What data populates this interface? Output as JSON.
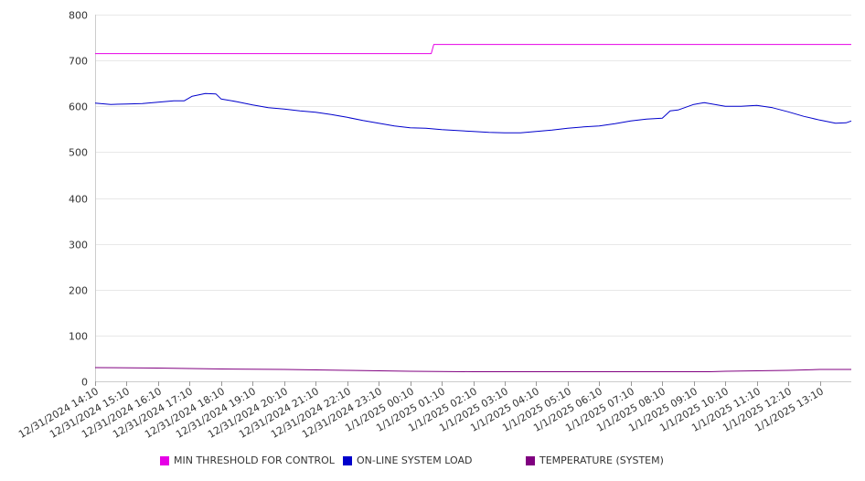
{
  "chart_data": {
    "type": "line",
    "title": "",
    "xlabel": "",
    "ylabel": "",
    "ylim": [
      0,
      800
    ],
    "yticks": [
      0,
      100,
      200,
      300,
      400,
      500,
      600,
      700,
      800
    ],
    "grid": true,
    "legend_position": "bottom",
    "x_start": "12/31/2024 14:10",
    "x_end": "1/1/2025 14:10",
    "x_tick_labels": [
      "12/31/2024 14:10",
      "12/31/2024 15:10",
      "12/31/2024 16:10",
      "12/31/2024 17:10",
      "12/31/2024 18:10",
      "12/31/2024 19:10",
      "12/31/2024 20:10",
      "12/31/2024 21:10",
      "12/31/2024 22:10",
      "12/31/2024 23:10",
      "1/1/2025 00:10",
      "1/1/2025 01:10",
      "1/1/2025 02:10",
      "1/1/2025 03:10",
      "1/1/2025 04:10",
      "1/1/2025 05:10",
      "1/1/2025 06:10",
      "1/1/2025 07:10",
      "1/1/2025 08:10",
      "1/1/2025 09:10",
      "1/1/2025 10:10",
      "1/1/2025 11:10",
      "1/1/2025 12:10",
      "1/1/2025 13:10"
    ],
    "series": [
      {
        "name": "MIN THRESHOLD FOR CONTROL",
        "color": "#e600e6",
        "points": [
          [
            "12/31/2024 14:10",
            715
          ],
          [
            "1/1/2025 00:50",
            715
          ],
          [
            "1/1/2025 00:55",
            735
          ],
          [
            "1/1/2025 14:10",
            735
          ]
        ]
      },
      {
        "name": "ON-LINE SYSTEM LOAD",
        "color": "#0000cc",
        "points": [
          [
            "12/31/2024 14:10",
            607
          ],
          [
            "12/31/2024 14:40",
            604
          ],
          [
            "12/31/2024 15:10",
            605
          ],
          [
            "12/31/2024 15:40",
            606
          ],
          [
            "12/31/2024 16:10",
            609
          ],
          [
            "12/31/2024 16:40",
            612
          ],
          [
            "12/31/2024 17:00",
            612
          ],
          [
            "12/31/2024 17:15",
            622
          ],
          [
            "12/31/2024 17:40",
            628
          ],
          [
            "12/31/2024 18:00",
            627
          ],
          [
            "12/31/2024 18:10",
            616
          ],
          [
            "12/31/2024 18:40",
            610
          ],
          [
            "12/31/2024 19:10",
            603
          ],
          [
            "12/31/2024 19:40",
            597
          ],
          [
            "12/31/2024 20:10",
            594
          ],
          [
            "12/31/2024 20:40",
            590
          ],
          [
            "12/31/2024 21:10",
            587
          ],
          [
            "12/31/2024 21:40",
            582
          ],
          [
            "12/31/2024 22:10",
            576
          ],
          [
            "12/31/2024 22:40",
            569
          ],
          [
            "12/31/2024 23:10",
            563
          ],
          [
            "12/31/2024 23:40",
            557
          ],
          [
            "1/1/2025 00:10",
            553
          ],
          [
            "1/1/2025 00:40",
            552
          ],
          [
            "1/1/2025 01:10",
            549
          ],
          [
            "1/1/2025 01:40",
            547
          ],
          [
            "1/1/2025 02:10",
            545
          ],
          [
            "1/1/2025 02:40",
            543
          ],
          [
            "1/1/2025 03:10",
            542
          ],
          [
            "1/1/2025 03:40",
            542
          ],
          [
            "1/1/2025 04:10",
            545
          ],
          [
            "1/1/2025 04:40",
            548
          ],
          [
            "1/1/2025 05:10",
            552
          ],
          [
            "1/1/2025 05:40",
            555
          ],
          [
            "1/1/2025 06:10",
            557
          ],
          [
            "1/1/2025 06:40",
            562
          ],
          [
            "1/1/2025 07:10",
            568
          ],
          [
            "1/1/2025 07:40",
            572
          ],
          [
            "1/1/2025 08:10",
            574
          ],
          [
            "1/1/2025 08:25",
            590
          ],
          [
            "1/1/2025 08:40",
            592
          ],
          [
            "1/1/2025 09:10",
            604
          ],
          [
            "1/1/2025 09:30",
            608
          ],
          [
            "1/1/2025 09:40",
            606
          ],
          [
            "1/1/2025 10:10",
            600
          ],
          [
            "1/1/2025 10:40",
            600
          ],
          [
            "1/1/2025 11:10",
            602
          ],
          [
            "1/1/2025 11:40",
            597
          ],
          [
            "1/1/2025 12:10",
            588
          ],
          [
            "1/1/2025 12:40",
            578
          ],
          [
            "1/1/2025 13:10",
            570
          ],
          [
            "1/1/2025 13:40",
            563
          ],
          [
            "1/1/2025 14:00",
            564
          ],
          [
            "1/1/2025 14:10",
            568
          ]
        ]
      },
      {
        "name": "TEMPERATURE (SYSTEM)",
        "color": "#800080",
        "points": [
          [
            "12/31/2024 14:10",
            30
          ],
          [
            "12/31/2024 16:10",
            29
          ],
          [
            "12/31/2024 18:10",
            27
          ],
          [
            "12/31/2024 20:10",
            26
          ],
          [
            "12/31/2024 22:10",
            24
          ],
          [
            "1/1/2025 00:10",
            22
          ],
          [
            "1/1/2025 02:10",
            21
          ],
          [
            "1/1/2025 04:10",
            21
          ],
          [
            "1/1/2025 06:10",
            21
          ],
          [
            "1/1/2025 08:10",
            21
          ],
          [
            "1/1/2025 09:40",
            21
          ],
          [
            "1/1/2025 10:10",
            22
          ],
          [
            "1/1/2025 11:10",
            23
          ],
          [
            "1/1/2025 12:10",
            24
          ],
          [
            "1/1/2025 13:10",
            26
          ],
          [
            "1/1/2025 14:10",
            26
          ]
        ]
      }
    ]
  }
}
